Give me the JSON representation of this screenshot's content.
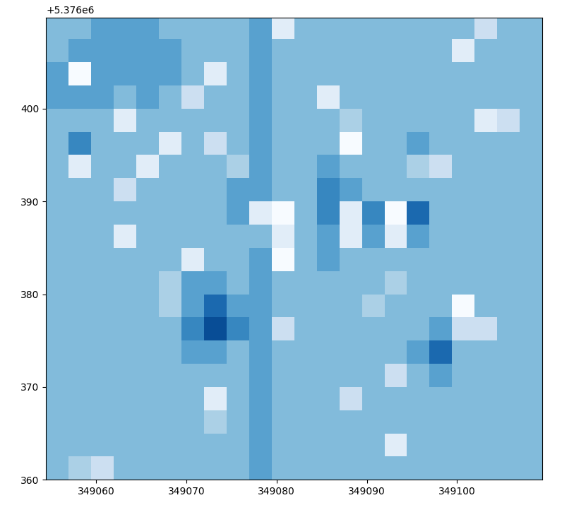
{
  "chart_data": {
    "type": "heatmap",
    "color": "Blues",
    "offset_label": "+5.376e6",
    "xlim": [
      349054.45,
      349109.45
    ],
    "ylim": [
      360,
      409.8
    ],
    "xticks": [
      349060,
      349070,
      349080,
      349090,
      349100
    ],
    "yticks": [
      360,
      370,
      380,
      390,
      400
    ],
    "value_range": [
      0,
      9
    ],
    "x_edges": [
      349054.45,
      349056.95,
      349059.45,
      349061.95,
      349064.45,
      349066.95,
      349069.45,
      349071.95,
      349074.45,
      349076.95,
      349079.45,
      349081.95,
      349084.45,
      349086.95,
      349089.45,
      349091.95,
      349094.45,
      349096.95,
      349099.45,
      349101.95,
      349104.45,
      349106.95,
      349109.45
    ],
    "y_edges": [
      360,
      362.5,
      365,
      367.5,
      370,
      372.5,
      375,
      377.5,
      380,
      382.5,
      385,
      387.5,
      390,
      392.5,
      395,
      397.5,
      400,
      402.5,
      405,
      407.5,
      410
    ],
    "cells": [
      [
        4,
        3,
        2,
        4,
        4,
        4,
        4,
        4,
        4,
        5,
        4,
        4,
        4,
        4,
        4,
        4,
        4,
        4,
        4,
        4,
        4,
        4
      ],
      [
        4,
        4,
        4,
        4,
        4,
        4,
        4,
        4,
        4,
        5,
        4,
        4,
        4,
        4,
        4,
        1,
        4,
        4,
        4,
        4,
        4,
        4
      ],
      [
        4,
        4,
        4,
        4,
        4,
        4,
        4,
        3,
        4,
        5,
        4,
        4,
        4,
        4,
        4,
        4,
        4,
        4,
        4,
        4,
        4,
        4
      ],
      [
        4,
        4,
        4,
        4,
        4,
        4,
        4,
        1,
        4,
        5,
        4,
        4,
        4,
        2,
        4,
        4,
        4,
        4,
        4,
        4,
        4,
        4
      ],
      [
        4,
        4,
        4,
        4,
        4,
        4,
        4,
        4,
        4,
        5,
        4,
        4,
        4,
        4,
        4,
        2,
        4,
        5,
        4,
        4,
        4,
        4
      ],
      [
        4,
        4,
        4,
        4,
        4,
        4,
        5,
        5,
        4,
        5,
        4,
        4,
        4,
        4,
        4,
        4,
        5,
        7,
        4,
        4,
        4,
        4
      ],
      [
        4,
        4,
        4,
        4,
        4,
        4,
        6,
        8,
        6,
        5,
        2,
        4,
        4,
        4,
        4,
        4,
        4,
        5,
        2,
        2,
        4,
        4
      ],
      [
        4,
        4,
        4,
        4,
        4,
        3,
        5,
        7,
        5,
        5,
        4,
        4,
        4,
        4,
        3,
        4,
        4,
        4,
        0,
        4,
        4,
        4
      ],
      [
        4,
        4,
        4,
        4,
        4,
        3,
        5,
        5,
        4,
        5,
        4,
        4,
        4,
        4,
        4,
        3,
        4,
        4,
        4,
        4,
        4,
        4
      ],
      [
        4,
        4,
        4,
        4,
        4,
        4,
        1,
        4,
        4,
        5,
        0,
        4,
        5,
        4,
        4,
        4,
        4,
        4,
        4,
        4,
        4,
        4
      ],
      [
        4,
        4,
        4,
        1,
        4,
        4,
        4,
        4,
        4,
        4,
        1,
        4,
        5,
        1,
        5,
        1,
        5,
        4,
        4,
        4,
        4,
        4
      ],
      [
        4,
        4,
        4,
        4,
        4,
        4,
        4,
        4,
        5,
        1,
        0,
        4,
        6,
        1,
        6,
        0,
        7,
        4,
        4,
        4,
        4,
        4
      ],
      [
        4,
        4,
        4,
        2,
        4,
        4,
        4,
        4,
        5,
        5,
        4,
        4,
        6,
        5,
        4,
        4,
        4,
        4,
        4,
        4,
        4,
        4
      ],
      [
        4,
        1,
        4,
        4,
        1,
        4,
        4,
        4,
        3,
        5,
        4,
        4,
        5,
        4,
        4,
        4,
        3,
        2,
        4,
        4,
        4,
        4
      ],
      [
        4,
        6,
        4,
        4,
        4,
        1,
        4,
        2,
        4,
        5,
        4,
        4,
        4,
        0,
        4,
        4,
        5,
        4,
        4,
        4,
        4,
        4
      ],
      [
        4,
        4,
        4,
        1,
        4,
        4,
        4,
        4,
        4,
        5,
        4,
        4,
        4,
        3,
        4,
        4,
        4,
        4,
        4,
        1,
        2,
        4
      ],
      [
        5,
        5,
        5,
        4,
        5,
        4,
        2,
        4,
        4,
        5,
        4,
        4,
        1,
        4,
        4,
        4,
        4,
        4,
        4,
        4,
        4,
        4
      ],
      [
        5,
        0,
        5,
        5,
        5,
        5,
        4,
        1,
        4,
        5,
        4,
        4,
        4,
        4,
        4,
        4,
        4,
        4,
        4,
        4,
        4,
        4
      ],
      [
        4,
        5,
        5,
        5,
        5,
        5,
        4,
        4,
        4,
        5,
        4,
        4,
        4,
        4,
        4,
        4,
        4,
        4,
        1,
        4,
        4,
        4
      ],
      [
        4,
        4,
        5,
        5,
        5,
        4,
        4,
        4,
        4,
        5,
        1,
        4,
        4,
        4,
        4,
        4,
        4,
        4,
        4,
        2,
        4,
        4
      ]
    ]
  }
}
